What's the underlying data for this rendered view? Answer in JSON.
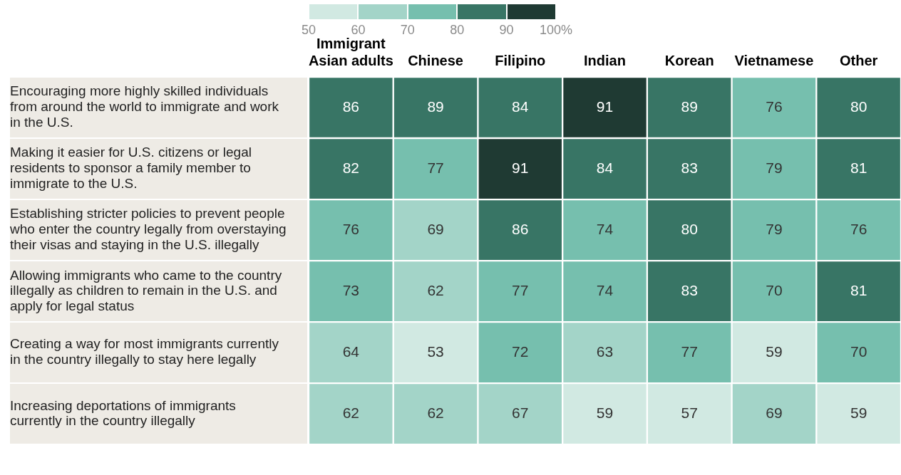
{
  "chart_data": {
    "type": "heatmap",
    "categories": [
      "Immigrant Asian adults",
      "Chinese",
      "Filipino",
      "Indian",
      "Korean",
      "Vietnamese",
      "Other"
    ],
    "y_categories": [
      "Encouraging more highly skilled individuals from around the world to immigrate and work in the U.S.",
      "Making it easier for U.S. citizens or legal residents to sponsor a family member to immigrate to the U.S.",
      "Establishing stricter policies to prevent people who enter the country legally from overstaying their visas and staying in the U.S. illegally",
      "Allowing immigrants who came to the country illegally as children to remain in the U.S. and apply for legal status",
      "Creating a way for most immigrants currently in the country illegally to stay here legally",
      "Increasing deportations of immigrants currently in the country illegally"
    ],
    "cells": [
      [
        86,
        89,
        84,
        91,
        89,
        76,
        80
      ],
      [
        82,
        77,
        91,
        84,
        83,
        79,
        81
      ],
      [
        76,
        69,
        86,
        74,
        80,
        79,
        76
      ],
      [
        73,
        62,
        77,
        74,
        83,
        70,
        81
      ],
      [
        64,
        53,
        72,
        63,
        77,
        59,
        70
      ],
      [
        62,
        62,
        67,
        59,
        57,
        69,
        59
      ]
    ],
    "clim": [
      50,
      100
    ],
    "cticks": [
      50,
      60,
      70,
      80,
      90,
      {
        "value": 100,
        "label": "100%"
      }
    ],
    "colors": [
      "#d1e9e2",
      "#a3d4c8",
      "#76bfae",
      "#387565",
      "#1f3a33"
    ],
    "data_labels": true
  }
}
